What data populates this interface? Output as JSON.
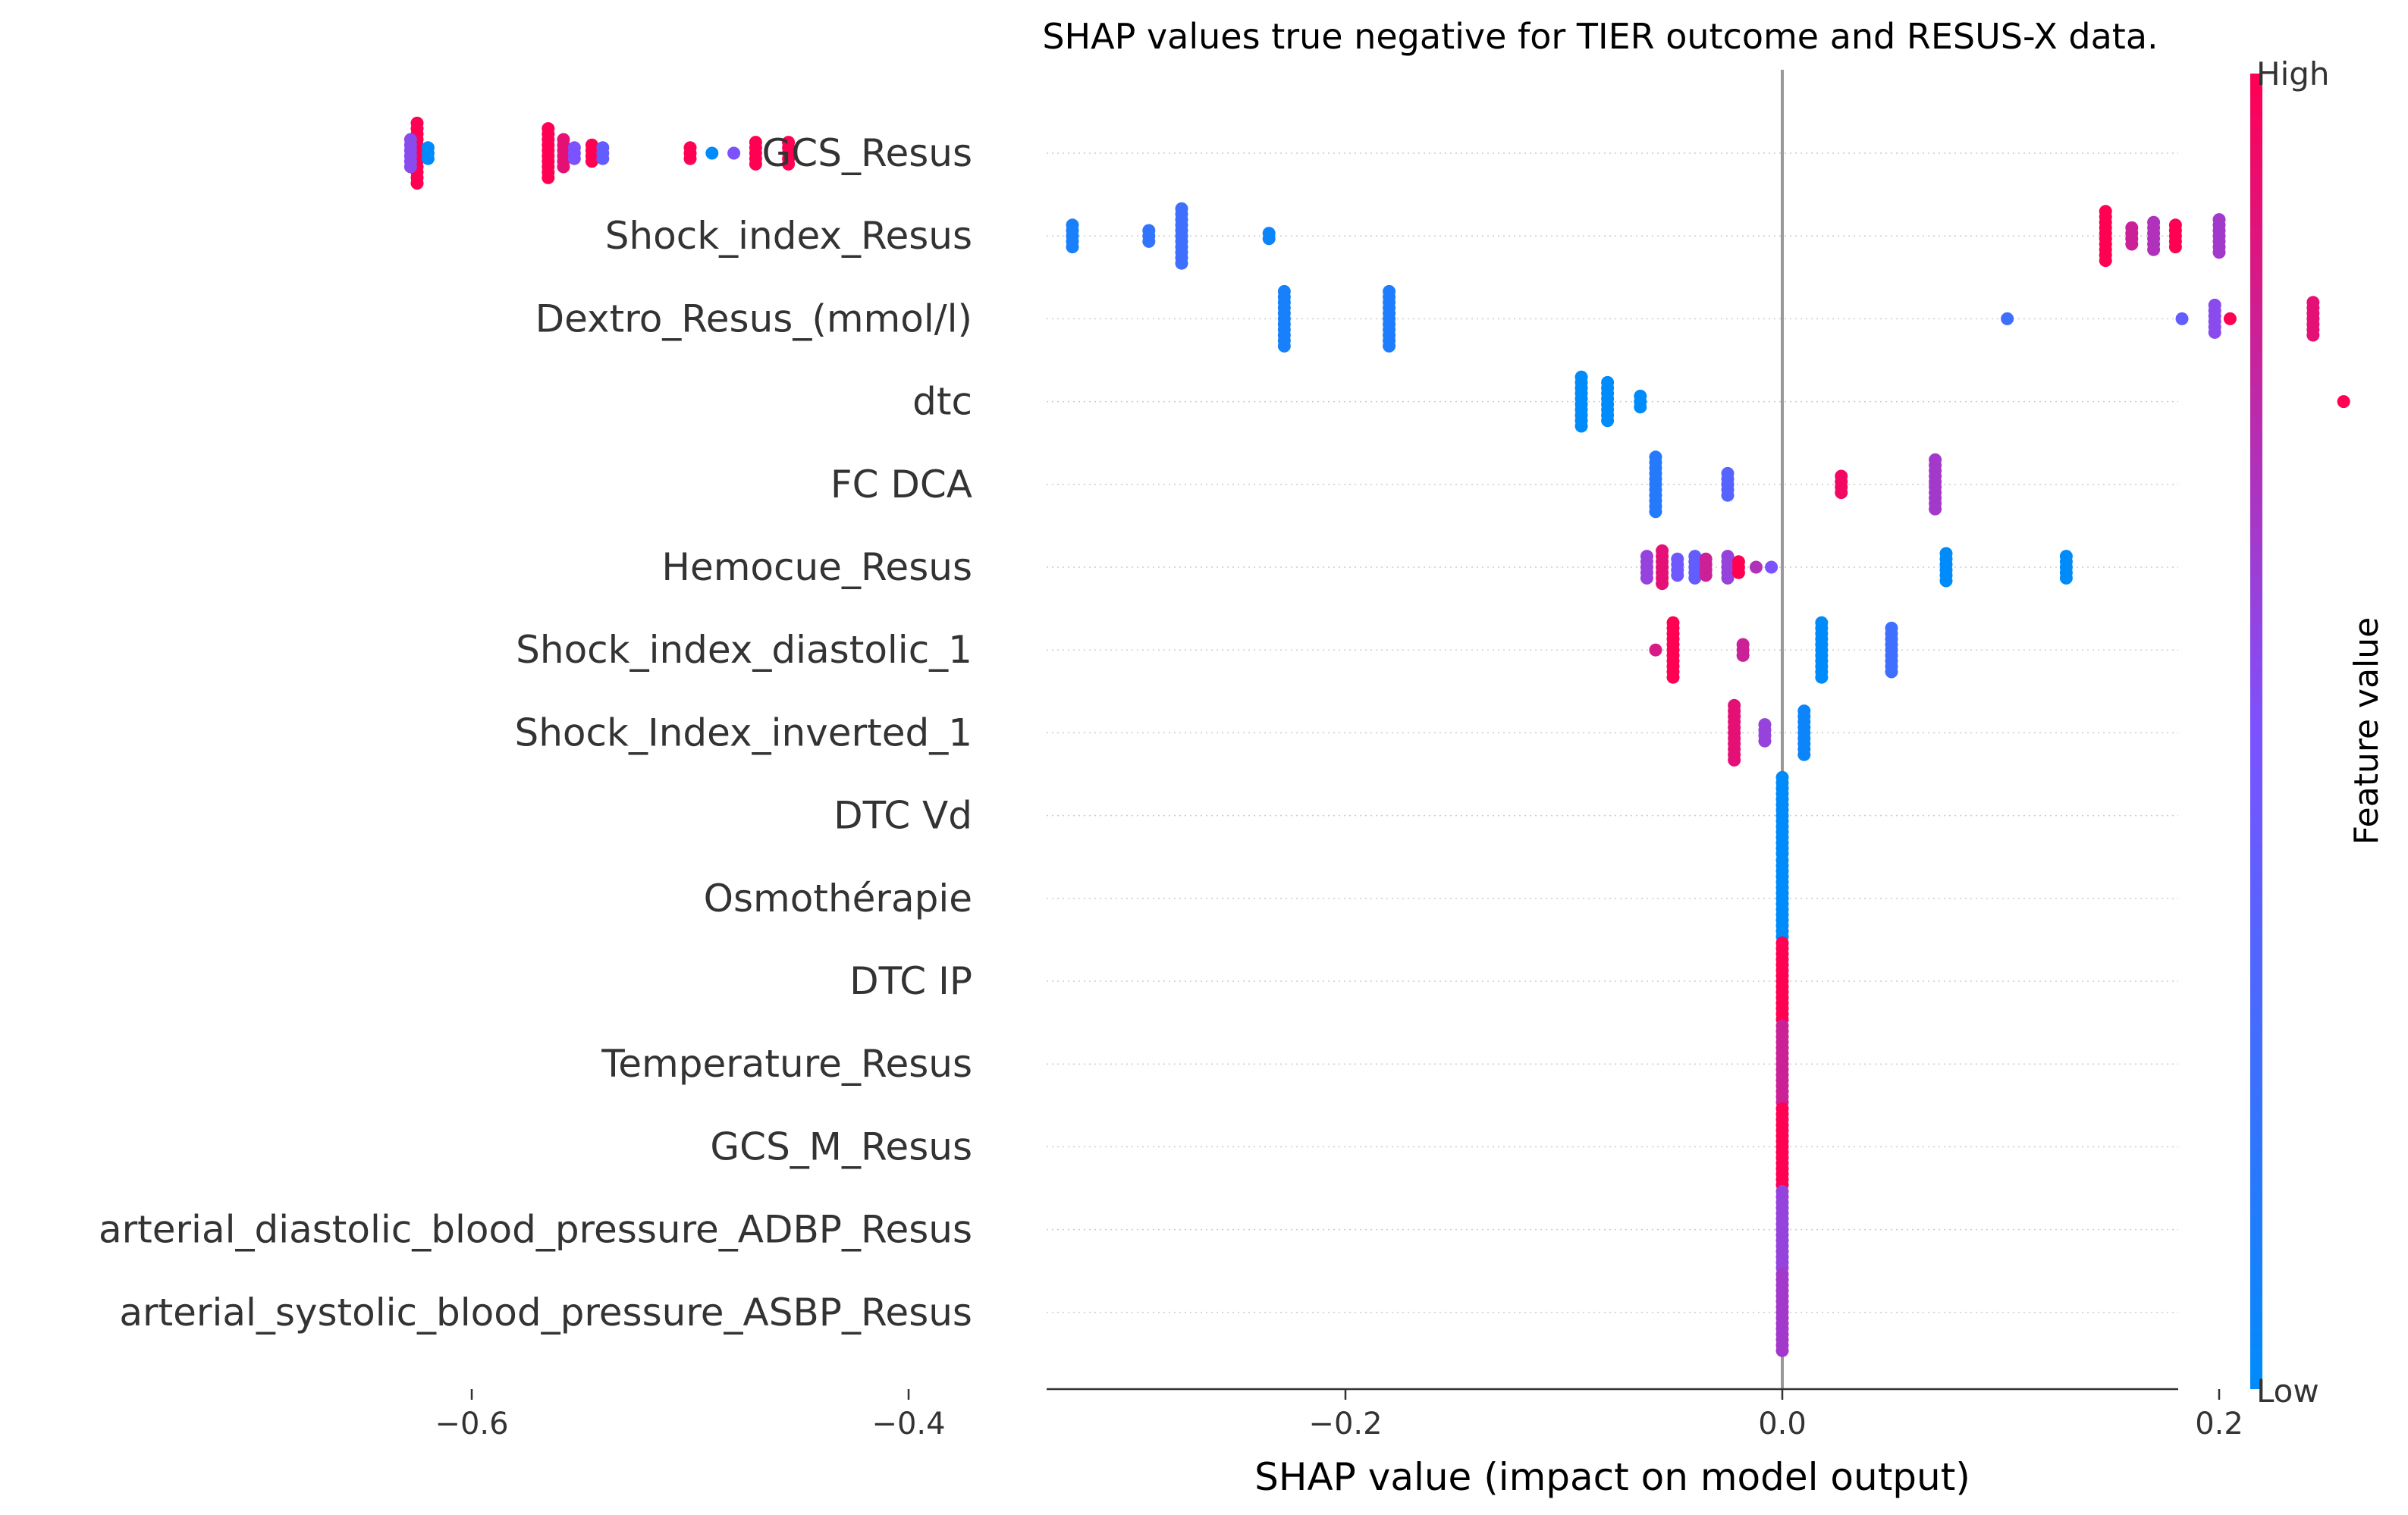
{
  "chart_data": {
    "type": "scatter",
    "subtype": "shap-beeswarm",
    "title": "SHAP values true negative for TIER outcome and RESUS-X data.",
    "xlabel": "SHAP value (impact on model output)",
    "ylabel": "",
    "xlim": [
      -0.675,
      0.36
    ],
    "xticks": [
      -0.6,
      -0.4,
      -0.2,
      0.0,
      0.2
    ],
    "xtick_labels": [
      "−0.6",
      "−0.4",
      "−0.2",
      "0.0",
      "0.2"
    ],
    "grid": "horizontal dotted",
    "colorbar": {
      "label": "Feature value",
      "high_label": "High",
      "low_label": "Low",
      "low_color": "#008bfb",
      "high_color": "#ff0052"
    },
    "features": [
      {
        "name": "GCS_Resus",
        "points": [
          {
            "x": -0.625,
            "v": 1.0,
            "n": 12
          },
          {
            "x": -0.628,
            "v": 0.55,
            "n": 6
          },
          {
            "x": -0.62,
            "v": 0.0,
            "n": 3
          },
          {
            "x": -0.565,
            "v": 1.0,
            "n": 10
          },
          {
            "x": -0.558,
            "v": 0.9,
            "n": 6
          },
          {
            "x": -0.553,
            "v": 0.5,
            "n": 3
          },
          {
            "x": -0.545,
            "v": 1.0,
            "n": 4
          },
          {
            "x": -0.54,
            "v": 0.4,
            "n": 3
          },
          {
            "x": -0.5,
            "v": 1.0,
            "n": 3
          },
          {
            "x": -0.49,
            "v": 0.0,
            "n": 1
          },
          {
            "x": -0.48,
            "v": 0.5,
            "n": 1
          },
          {
            "x": -0.47,
            "v": 1.0,
            "n": 5
          },
          {
            "x": -0.455,
            "v": 1.0,
            "n": 5
          }
        ]
      },
      {
        "name": "Shock_index_Resus",
        "points": [
          {
            "x": -0.325,
            "v": 0.1,
            "n": 5
          },
          {
            "x": -0.29,
            "v": 0.2,
            "n": 3
          },
          {
            "x": -0.275,
            "v": 0.25,
            "n": 11
          },
          {
            "x": -0.235,
            "v": 0.05,
            "n": 2
          },
          {
            "x": 0.148,
            "v": 1.0,
            "n": 10
          },
          {
            "x": 0.16,
            "v": 0.8,
            "n": 4
          },
          {
            "x": 0.17,
            "v": 0.7,
            "n": 6
          },
          {
            "x": 0.18,
            "v": 1.0,
            "n": 5
          },
          {
            "x": 0.2,
            "v": 0.65,
            "n": 7
          }
        ]
      },
      {
        "name": "Dextro_Resus_(mmol/l)",
        "points": [
          {
            "x": -0.228,
            "v": 0.1,
            "n": 11
          },
          {
            "x": -0.18,
            "v": 0.12,
            "n": 11
          },
          {
            "x": 0.103,
            "v": 0.25,
            "n": 1
          },
          {
            "x": 0.183,
            "v": 0.4,
            "n": 1
          },
          {
            "x": 0.198,
            "v": 0.55,
            "n": 6
          },
          {
            "x": 0.205,
            "v": 1.0,
            "n": 1
          },
          {
            "x": 0.243,
            "v": 0.9,
            "n": 7
          }
        ]
      },
      {
        "name": "dtc",
        "points": [
          {
            "x": -0.092,
            "v": 0.0,
            "n": 10
          },
          {
            "x": -0.08,
            "v": 0.0,
            "n": 8
          },
          {
            "x": -0.065,
            "v": 0.0,
            "n": 3
          },
          {
            "x": 0.257,
            "v": 1.0,
            "n": 1
          },
          {
            "x": 0.315,
            "v": 1.0,
            "n": 2
          }
        ]
      },
      {
        "name": "FC  DCA",
        "points": [
          {
            "x": -0.058,
            "v": 0.15,
            "n": 11
          },
          {
            "x": -0.025,
            "v": 0.35,
            "n": 5
          },
          {
            "x": 0.027,
            "v": 0.95,
            "n": 4
          },
          {
            "x": 0.07,
            "v": 0.65,
            "n": 10
          }
        ]
      },
      {
        "name": "Hemocue_Resus",
        "points": [
          {
            "x": -0.062,
            "v": 0.6,
            "n": 5
          },
          {
            "x": -0.055,
            "v": 0.9,
            "n": 7
          },
          {
            "x": -0.048,
            "v": 0.45,
            "n": 4
          },
          {
            "x": -0.04,
            "v": 0.4,
            "n": 5
          },
          {
            "x": -0.035,
            "v": 0.8,
            "n": 4
          },
          {
            "x": -0.025,
            "v": 0.6,
            "n": 5
          },
          {
            "x": -0.02,
            "v": 1.0,
            "n": 3
          },
          {
            "x": -0.012,
            "v": 0.7,
            "n": 1
          },
          {
            "x": -0.005,
            "v": 0.5,
            "n": 1
          },
          {
            "x": 0.075,
            "v": 0.0,
            "n": 6
          },
          {
            "x": 0.13,
            "v": 0.0,
            "n": 5
          }
        ]
      },
      {
        "name": "Shock_index_diastolic_1",
        "points": [
          {
            "x": -0.05,
            "v": 1.0,
            "n": 11
          },
          {
            "x": -0.058,
            "v": 0.85,
            "n": 1
          },
          {
            "x": -0.018,
            "v": 0.8,
            "n": 3
          },
          {
            "x": 0.018,
            "v": 0.0,
            "n": 11
          },
          {
            "x": 0.05,
            "v": 0.25,
            "n": 9
          }
        ]
      },
      {
        "name": "Shock_Index_inverted_1",
        "points": [
          {
            "x": -0.022,
            "v": 0.9,
            "n": 11
          },
          {
            "x": -0.008,
            "v": 0.6,
            "n": 4
          },
          {
            "x": 0.01,
            "v": 0.05,
            "n": 9
          }
        ]
      },
      {
        "name": "DTC Vd",
        "points": [
          {
            "x": 0.0,
            "v": 0.0,
            "n": 15
          }
        ]
      },
      {
        "name": "Osmothérapie",
        "points": [
          {
            "x": 0.0,
            "v": 0.0,
            "n": 15
          }
        ]
      },
      {
        "name": "DTC IP",
        "points": [
          {
            "x": 0.0,
            "v": 1.0,
            "n": 15
          }
        ]
      },
      {
        "name": "Temperature_Resus",
        "points": [
          {
            "x": 0.0,
            "v": 0.8,
            "n": 15
          }
        ]
      },
      {
        "name": "GCS_M_Resus",
        "points": [
          {
            "x": 0.0,
            "v": 1.0,
            "n": 15
          }
        ]
      },
      {
        "name": "arterial_diastolic_blood_pressure_ADBP_Resus",
        "points": [
          {
            "x": 0.0,
            "v": 0.6,
            "n": 15
          }
        ]
      },
      {
        "name": "arterial_systolic_blood_pressure_ASBP_Resus",
        "points": [
          {
            "x": 0.0,
            "v": 0.65,
            "n": 15
          }
        ]
      }
    ]
  }
}
